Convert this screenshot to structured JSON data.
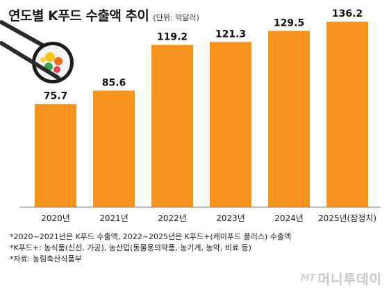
{
  "header": {
    "title": "연도별 K푸드 수출액 추이",
    "unit": "(단위: 억달러)"
  },
  "chart_data": {
    "type": "bar",
    "categories": [
      "2020년",
      "2021년",
      "2022년",
      "2023년",
      "2024년",
      "2025년(잠정치)"
    ],
    "values": [
      75.7,
      85.6,
      119.2,
      121.3,
      129.5,
      136.2
    ],
    "value_labels": [
      "75.7",
      "85.6",
      "119.2",
      "121.3",
      "129.5",
      "136.2"
    ],
    "title": "연도별 K푸드 수출액 추이",
    "xlabel": "",
    "ylabel": "",
    "ylim": [
      0,
      145
    ],
    "grid": false,
    "bar_color": "#F7941D"
  },
  "notes": [
    "*2020~2021년은 K푸드 수출액, 2022~2025년은 K푸드+(케이푸드 플러스) 수출액",
    "*K푸드+: 농식품(신선, 가공), 농산업(동물용의약품, 농기계, 농약, 비료 등)",
    "*자료: 농림축산식품부"
  ],
  "brand": {
    "mark": "MT",
    "name": "머니투데이"
  },
  "illustration": {
    "name": "gimbap-with-chopsticks"
  }
}
